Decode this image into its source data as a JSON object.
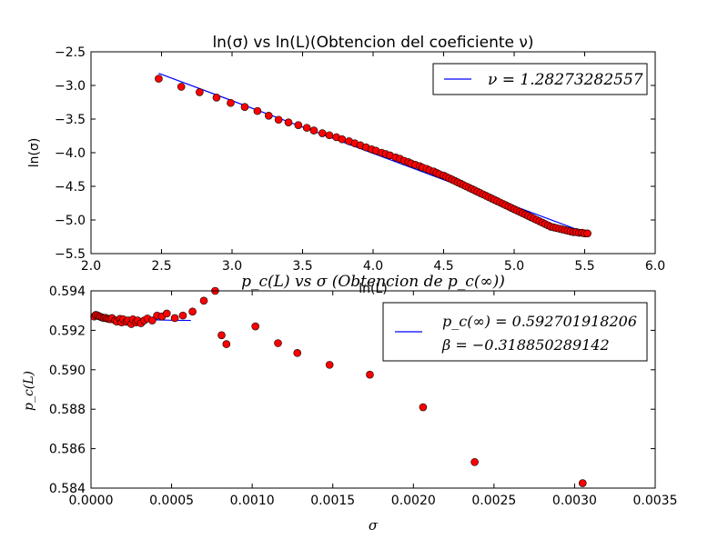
{
  "chart_data": [
    {
      "type": "scatter",
      "title": "ln(σ) vs ln(L)(Obtencion del coeficiente ν)",
      "xlabel": "ln(L)",
      "ylabel": "ln(σ)",
      "xlim": [
        2.0,
        6.0
      ],
      "ylim": [
        -5.5,
        -2.5
      ],
      "xticks": [
        "2.0",
        "2.5",
        "3.0",
        "3.5",
        "4.0",
        "4.5",
        "5.0",
        "5.5",
        "6.0"
      ],
      "yticks": [
        "−2.5",
        "−3.0",
        "−3.5",
        "−4.0",
        "−4.5",
        "−5.0",
        "−5.5"
      ],
      "grid": false,
      "legend_position": "top-right",
      "legend": [
        {
          "label": "ν = 1.28273282557",
          "kind": "line",
          "color": "#0000ff"
        }
      ],
      "series": [
        {
          "kind": "points",
          "color": "#ff0000",
          "x": [
            2.48,
            2.64,
            2.77,
            2.89,
            2.99,
            3.09,
            3.18,
            3.26,
            3.33,
            3.4,
            3.47,
            3.53,
            3.58,
            3.64,
            3.69,
            3.74,
            3.78,
            3.83,
            3.87,
            3.91,
            3.95,
            3.99,
            4.02,
            4.06,
            4.09,
            4.12,
            4.16,
            4.19,
            4.22,
            4.25,
            4.27,
            4.3,
            4.33,
            4.35,
            4.38,
            4.4,
            4.43,
            4.45,
            4.47,
            4.5,
            4.52,
            4.54,
            4.56,
            4.58,
            4.6,
            4.62,
            4.64,
            4.66,
            4.68,
            4.7,
            4.72,
            4.74,
            4.76,
            4.78,
            4.8,
            4.82,
            4.84,
            4.86,
            4.88,
            4.9,
            4.92,
            4.94,
            4.96,
            4.98,
            5.0,
            5.02,
            5.04,
            5.06,
            5.08,
            5.1,
            5.12,
            5.14,
            5.16,
            5.18,
            5.2,
            5.22,
            5.24,
            5.26,
            5.28,
            5.3,
            5.32,
            5.34,
            5.36,
            5.38,
            5.4,
            5.42,
            5.44,
            5.46,
            5.48,
            5.5,
            5.52
          ],
          "y": [
            -2.9,
            -3.02,
            -3.1,
            -3.18,
            -3.26,
            -3.32,
            -3.38,
            -3.45,
            -3.51,
            -3.55,
            -3.59,
            -3.63,
            -3.67,
            -3.71,
            -3.74,
            -3.77,
            -3.8,
            -3.83,
            -3.86,
            -3.89,
            -3.92,
            -3.95,
            -3.97,
            -4.0,
            -4.02,
            -4.04,
            -4.07,
            -4.09,
            -4.12,
            -4.14,
            -4.16,
            -4.18,
            -4.2,
            -4.22,
            -4.24,
            -4.26,
            -4.28,
            -4.3,
            -4.32,
            -4.34,
            -4.36,
            -4.38,
            -4.4,
            -4.42,
            -4.44,
            -4.46,
            -4.48,
            -4.5,
            -4.52,
            -4.54,
            -4.56,
            -4.58,
            -4.6,
            -4.62,
            -4.64,
            -4.66,
            -4.68,
            -4.7,
            -4.72,
            -4.74,
            -4.76,
            -4.78,
            -4.8,
            -4.82,
            -4.84,
            -4.86,
            -4.88,
            -4.9,
            -4.92,
            -4.94,
            -4.96,
            -4.98,
            -5.0,
            -5.02,
            -5.04,
            -5.06,
            -5.08,
            -5.1,
            -5.11,
            -5.12,
            -5.13,
            -5.14,
            -5.15,
            -5.16,
            -5.17,
            -5.18,
            -5.18,
            -5.19,
            -5.19,
            -5.2,
            -5.2
          ]
        },
        {
          "kind": "line",
          "color": "#0000ff",
          "x": [
            2.48,
            5.52
          ],
          "y": [
            -2.82,
            -5.2
          ]
        }
      ]
    },
    {
      "type": "scatter",
      "title": "p_c(L) vs σ (Obtencion de p_c(∞))",
      "xlabel": "σ",
      "ylabel": "p_c(L)",
      "xlim": [
        0.0,
        0.0035
      ],
      "ylim": [
        0.584,
        0.594
      ],
      "xticks": [
        "0.0000",
        "0.0005",
        "0.0010",
        "0.0015",
        "0.0020",
        "0.0025",
        "0.0030",
        "0.0035"
      ],
      "yticks": [
        "0.594",
        "0.592",
        "0.590",
        "0.588",
        "0.586",
        "0.584"
      ],
      "grid": false,
      "legend_position": "top-right",
      "legend": [
        {
          "label": "p_c(∞) = 0.592701918206",
          "kind": "line",
          "color": "#0000ff"
        },
        {
          "label": "β = −0.318850289142",
          "kind": "none",
          "color": "#0000ff"
        }
      ],
      "series": [
        {
          "kind": "points",
          "color": "#ff0000",
          "x": [
            2e-05,
            3e-05,
            4e-05,
            5e-05,
            6e-05,
            7e-05,
            8e-05,
            9e-05,
            0.0001,
            0.00011,
            0.00012,
            0.00013,
            0.00015,
            0.00016,
            0.00018,
            0.00019,
            0.0002,
            0.00022,
            0.00023,
            0.00025,
            0.00026,
            0.00028,
            0.00029,
            0.00031,
            0.00033,
            0.00035,
            0.00038,
            0.00041,
            0.00044,
            0.00047,
            0.00052,
            0.00057,
            0.00063,
            0.0007,
            0.00077,
            0.00081,
            0.00084,
            0.00102,
            0.00116,
            0.00128,
            0.00148,
            0.00173,
            0.00206,
            0.00238,
            0.00305
          ],
          "y": [
            0.5927,
            0.59278,
            0.59276,
            0.59271,
            0.59268,
            0.59265,
            0.59262,
            0.59263,
            0.5926,
            0.59258,
            0.59256,
            0.59262,
            0.5925,
            0.59244,
            0.59258,
            0.5924,
            0.59256,
            0.59243,
            0.5925,
            0.59232,
            0.59256,
            0.5924,
            0.5925,
            0.59236,
            0.5925,
            0.5926,
            0.5925,
            0.59275,
            0.5927,
            0.59285,
            0.59262,
            0.59275,
            0.59295,
            0.5935,
            0.594,
            0.59175,
            0.5913,
            0.5922,
            0.59135,
            0.59085,
            0.59025,
            0.58975,
            0.5881,
            0.58532,
            0.58425
          ]
        },
        {
          "kind": "line",
          "color": "#0000ff",
          "x": [
            0.0,
            6e-05,
            0.00012,
            0.0002,
            0.0003,
            0.0004,
            0.0005,
            0.00062
          ],
          "y": [
            0.59274,
            0.59269,
            0.59264,
            0.59259,
            0.59255,
            0.59253,
            0.59251,
            0.5925
          ]
        }
      ]
    }
  ]
}
